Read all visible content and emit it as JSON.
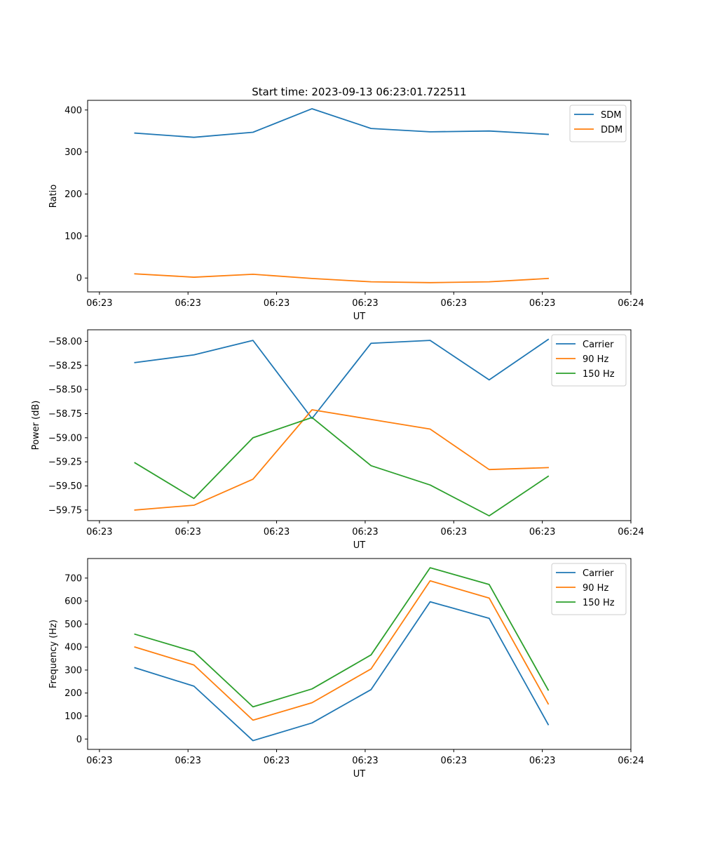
{
  "chart_data": [
    {
      "type": "line",
      "title": "Start time: 2023-09-13 06:23:01.722511",
      "xlabel": "UT",
      "ylabel": "Ratio",
      "x": [
        1,
        2,
        3,
        4,
        5,
        6,
        7,
        8
      ],
      "xlim": [
        0.2,
        9.4
      ],
      "xticks": [
        0.4,
        1.9,
        3.4,
        4.9,
        6.4,
        7.9,
        9.4
      ],
      "xtick_labels": [
        "06:23",
        "06:23",
        "06:23",
        "06:23",
        "06:23",
        "06:23",
        "06:24"
      ],
      "ylim": [
        -33,
        423
      ],
      "yticks": [
        0,
        100,
        200,
        300,
        400
      ],
      "ytick_labels": [
        "0",
        "100",
        "200",
        "300",
        "400"
      ],
      "legend_position": "top-right",
      "series": [
        {
          "name": "SDM",
          "color": "#1f77b4",
          "values": [
            345,
            335,
            347,
            403,
            356,
            348,
            350,
            342
          ]
        },
        {
          "name": "DDM",
          "color": "#ff7f0e",
          "values": [
            10,
            2,
            9,
            -1,
            -9,
            -11,
            -9,
            -1
          ]
        }
      ]
    },
    {
      "type": "line",
      "xlabel": "UT",
      "ylabel": "Power (dB)",
      "x": [
        1,
        2,
        3,
        4,
        5,
        6,
        7,
        8
      ],
      "xlim": [
        0.2,
        9.4
      ],
      "xticks": [
        0.4,
        1.9,
        3.4,
        4.9,
        6.4,
        7.9,
        9.4
      ],
      "xtick_labels": [
        "06:23",
        "06:23",
        "06:23",
        "06:23",
        "06:23",
        "06:23",
        "06:24"
      ],
      "ylim": [
        -59.86,
        -57.88
      ],
      "yticks": [
        -58.0,
        -58.25,
        -58.5,
        -58.75,
        -59.0,
        -59.25,
        -59.5,
        -59.75
      ],
      "ytick_labels": [
        "−58.00",
        "−58.25",
        "−58.50",
        "−58.75",
        "−59.00",
        "−59.25",
        "−59.50",
        "−59.75"
      ],
      "legend_position": "top-right",
      "series": [
        {
          "name": "Carrier",
          "color": "#1f77b4",
          "values": [
            -58.22,
            -58.14,
            -57.99,
            -58.8,
            -58.02,
            -57.99,
            -58.4,
            -57.98
          ]
        },
        {
          "name": "90 Hz",
          "color": "#ff7f0e",
          "values": [
            -59.75,
            -59.7,
            -59.43,
            -58.71,
            -58.81,
            -58.91,
            -59.33,
            -59.31
          ]
        },
        {
          "name": "150 Hz",
          "color": "#2ca02c",
          "values": [
            -59.26,
            -59.63,
            -59.0,
            -58.79,
            -59.29,
            -59.49,
            -59.81,
            -59.4
          ]
        }
      ]
    },
    {
      "type": "line",
      "xlabel": "UT",
      "ylabel": "Frequency (Hz)",
      "x": [
        1,
        2,
        3,
        4,
        5,
        6,
        7,
        8
      ],
      "xlim": [
        0.2,
        9.4
      ],
      "xticks": [
        0.4,
        1.9,
        3.4,
        4.9,
        6.4,
        7.9,
        9.4
      ],
      "xtick_labels": [
        "06:23",
        "06:23",
        "06:23",
        "06:23",
        "06:23",
        "06:23",
        "06:24"
      ],
      "ylim": [
        -45,
        785
      ],
      "yticks": [
        0,
        100,
        200,
        300,
        400,
        500,
        600,
        700
      ],
      "ytick_labels": [
        "0",
        "100",
        "200",
        "300",
        "400",
        "500",
        "600",
        "700"
      ],
      "legend_position": "top-right",
      "series": [
        {
          "name": "Carrier",
          "color": "#1f77b4",
          "values": [
            310,
            230,
            -7,
            70,
            215,
            597,
            525,
            63
          ]
        },
        {
          "name": "90 Hz",
          "color": "#ff7f0e",
          "values": [
            400,
            322,
            82,
            158,
            305,
            688,
            613,
            153
          ]
        },
        {
          "name": "150 Hz",
          "color": "#2ca02c",
          "values": [
            456,
            380,
            140,
            218,
            366,
            745,
            672,
            213
          ]
        }
      ]
    }
  ]
}
